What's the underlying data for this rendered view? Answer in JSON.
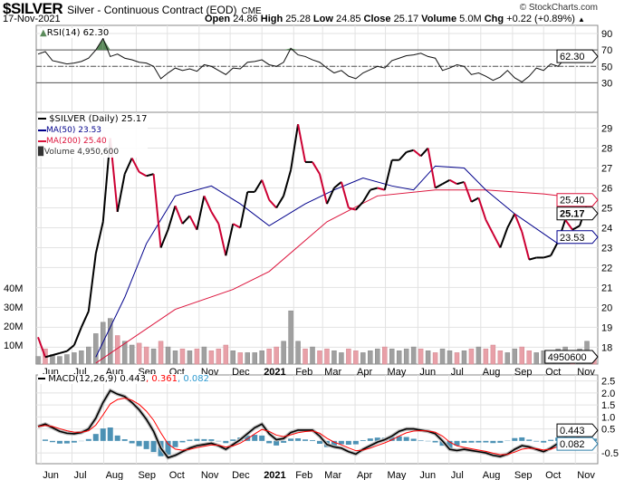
{
  "header": {
    "symbol": "$SILVER",
    "name": "Silver - Continuous Contract (EOD)",
    "exchange": "CME",
    "copyright": "© StockCharts.com",
    "date": "17-Nov-2021",
    "open_label": "Open",
    "open": "24.86",
    "high_label": "High",
    "high": "25.28",
    "low_label": "Low",
    "low": "24.85",
    "close_label": "Close",
    "close": "25.17",
    "volume_label": "Volume",
    "volume": "5.0M",
    "chg_label": "Chg",
    "chg": "+0.22 (+0.89%)",
    "chg_icon": "up-triangle-icon"
  },
  "colors": {
    "price_up": "#000000",
    "price_down": "#cc0033",
    "ma50": "#00008b",
    "ma200": "#dc143c",
    "volume_up": "#a0a0a0",
    "volume_down": "#e8a0a8",
    "rsi_fill": "#5a8a5a",
    "macd": "#000000",
    "signal": "#ff0000",
    "hist": "#2e7fa8"
  },
  "chart_data": [
    {
      "type": "line",
      "panel": "rsi",
      "legend": "RSI(14) 62.30",
      "ylim": [
        -6,
        100
      ],
      "yticks": [
        30,
        50,
        70,
        90
      ],
      "overbought": 70,
      "oversold": 30,
      "midline": 50,
      "last_label": "62.30",
      "values": [
        65,
        68,
        57,
        55,
        53,
        54,
        56,
        60,
        70,
        84,
        62,
        65,
        60,
        58,
        55,
        54,
        50,
        35,
        42,
        48,
        45,
        47,
        44,
        52,
        50,
        45,
        40,
        48,
        47,
        55,
        56,
        58,
        52,
        50,
        55,
        72,
        64,
        62,
        58,
        55,
        48,
        42,
        45,
        38,
        35,
        42,
        46,
        50,
        48,
        57,
        60,
        63,
        64,
        66,
        62,
        60,
        45,
        48,
        52,
        50,
        40,
        42,
        38,
        33,
        37,
        45,
        36,
        31,
        38,
        48,
        45,
        53,
        50,
        60,
        62,
        58,
        65,
        62.3
      ]
    },
    {
      "type": "line",
      "panel": "price",
      "legend": {
        "price": "$SILVER (Daily) 25.17",
        "ma50": "MA(50) 23.53",
        "ma200": "MA(200) 25.40",
        "volume": "Volume 4,950,600"
      },
      "ylim": [
        17.15,
        29.8
      ],
      "yticks": [
        18,
        19,
        20,
        21,
        22,
        23,
        24,
        25,
        26,
        27,
        28,
        29
      ],
      "last_labels": {
        "close": "25.17",
        "ma50": "23.53",
        "ma200": "25.40",
        "volume": "4950600"
      },
      "x_unit": "week",
      "close": [
        18.5,
        17.5,
        17.6,
        17.7,
        17.8,
        18.1,
        19.0,
        19.8,
        22.7,
        24.3,
        28.5,
        24.8,
        26.7,
        27.5,
        26.8,
        26.6,
        26.7,
        23.0,
        23.9,
        25.1,
        24.2,
        24.6,
        23.9,
        25.6,
        24.8,
        24.2,
        22.6,
        24.2,
        24.0,
        25.8,
        25.8,
        26.4,
        25.4,
        25.0,
        25.6,
        26.9,
        29.2,
        27.3,
        27.3,
        26.7,
        25.2,
        26.0,
        26.3,
        25.0,
        24.9,
        25.3,
        25.9,
        26.0,
        25.9,
        27.4,
        27.4,
        27.8,
        27.9,
        27.6,
        28.0,
        26.0,
        26.2,
        26.4,
        26.2,
        26.3,
        25.3,
        25.5,
        24.4,
        23.7,
        23.0,
        24.0,
        24.7,
        23.8,
        22.4,
        22.5,
        22.5,
        22.6,
        23.3,
        24.4,
        23.9,
        24.1,
        25.2,
        25.17
      ],
      "ma50": [
        [
          8,
          17.5
        ],
        [
          12,
          20.5
        ],
        [
          15,
          23.2
        ],
        [
          19,
          25.6
        ],
        [
          24,
          26.1
        ],
        [
          28,
          25.2
        ],
        [
          32,
          24.1
        ],
        [
          37,
          25.2
        ],
        [
          41,
          25.9
        ],
        [
          45,
          26.5
        ],
        [
          49,
          26.1
        ],
        [
          52,
          25.9
        ],
        [
          55,
          27.1
        ],
        [
          59,
          27.0
        ],
        [
          62,
          25.9
        ],
        [
          66,
          24.7
        ],
        [
          72,
          23.2
        ],
        [
          77,
          23.53
        ]
      ],
      "ma200": [
        [
          8,
          17.2
        ],
        [
          19,
          19.9
        ],
        [
          27,
          20.9
        ],
        [
          32,
          21.8
        ],
        [
          40,
          24.3
        ],
        [
          47,
          25.6
        ],
        [
          55,
          25.9
        ],
        [
          62,
          25.9
        ],
        [
          70,
          25.7
        ],
        [
          77,
          25.4
        ]
      ],
      "volume_ticks": [
        "10M",
        "20M",
        "30M",
        "40M"
      ],
      "volume_tick_values": [
        10,
        20,
        30,
        40
      ],
      "volume_millions": [
        4,
        8,
        5,
        4,
        5,
        6,
        7,
        9,
        16,
        22,
        24,
        15,
        12,
        10,
        11,
        9,
        8,
        12,
        9,
        7,
        8,
        7,
        8,
        9,
        7,
        8,
        10,
        7,
        6,
        6,
        6,
        7,
        8,
        9,
        12,
        28,
        12,
        8,
        9,
        7,
        8,
        7,
        6,
        8,
        7,
        6,
        7,
        8,
        9,
        8,
        7,
        8,
        9,
        8,
        7,
        6,
        8,
        7,
        6,
        7,
        8,
        9,
        8,
        10,
        7,
        6,
        8,
        9,
        7,
        6,
        7,
        6,
        8,
        9,
        7,
        8,
        12,
        5
      ]
    },
    {
      "type": "line",
      "panel": "macd",
      "legend": {
        "name": "MACD(12,26,9)",
        "macd": "0.443",
        "signal": "0.361",
        "hist": "0.082"
      },
      "ylim": [
        -0.95,
        2.75
      ],
      "yticks": [
        "-0.5",
        "0.5",
        "1.0",
        "1.5",
        "2.0",
        "2.5"
      ],
      "ytick_values": [
        -0.5,
        0.5,
        1.0,
        1.5,
        2.0,
        2.5
      ],
      "last_labels": {
        "macd": "0.443",
        "hist": "0.082"
      },
      "macd": [
        0.6,
        0.7,
        0.55,
        0.4,
        0.32,
        0.3,
        0.35,
        0.5,
        0.95,
        1.6,
        2.1,
        1.95,
        1.85,
        1.6,
        1.3,
        0.9,
        0.4,
        -0.3,
        -0.7,
        -0.6,
        -0.45,
        -0.3,
        -0.2,
        -0.15,
        -0.1,
        -0.2,
        -0.35,
        -0.15,
        0.05,
        0.3,
        0.55,
        0.7,
        0.3,
        0.05,
        0.1,
        0.35,
        0.45,
        0.45,
        0.45,
        0.2,
        -0.15,
        -0.25,
        -0.3,
        -0.45,
        -0.55,
        -0.35,
        -0.2,
        -0.05,
        0.05,
        0.2,
        0.4,
        0.5,
        0.5,
        0.45,
        0.4,
        0.3,
        0.0,
        -0.35,
        -0.4,
        -0.35,
        -0.4,
        -0.45,
        -0.5,
        -0.6,
        -0.65,
        -0.55,
        -0.35,
        -0.2,
        -0.25,
        -0.35,
        -0.45,
        -0.3,
        -0.1,
        0.15,
        0.3,
        0.25,
        0.4,
        0.443
      ]
    }
  ],
  "x_ticks": [
    {
      "label": "Jun",
      "week": 0.4
    },
    {
      "label": "Jul",
      "week": 4.7
    },
    {
      "label": "Aug",
      "week": 9.1
    },
    {
      "label": "Sep",
      "week": 13.6
    },
    {
      "label": "Oct",
      "week": 17.9
    },
    {
      "label": "Nov",
      "week": 22.3
    },
    {
      "label": "Dec",
      "week": 26.6
    },
    {
      "label": "2021",
      "week": 31,
      "bold": true
    },
    {
      "label": "Feb",
      "week": 35.4
    },
    {
      "label": "Mar",
      "week": 39.4
    },
    {
      "label": "Apr",
      "week": 43.9
    },
    {
      "label": "May",
      "week": 48.1
    },
    {
      "label": "Jun",
      "week": 52.6
    },
    {
      "label": "Jul",
      "week": 56.9
    },
    {
      "label": "Aug",
      "week": 61.3
    },
    {
      "label": "Sep",
      "week": 65.7
    },
    {
      "label": "Oct",
      "week": 70
    },
    {
      "label": "Nov",
      "week": 74.4
    }
  ]
}
